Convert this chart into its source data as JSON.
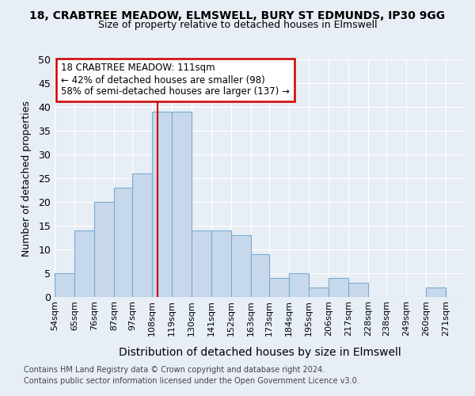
{
  "title_line1": "18, CRABTREE MEADOW, ELMSWELL, BURY ST EDMUNDS, IP30 9GG",
  "title_line2": "Size of property relative to detached houses in Elmswell",
  "xlabel": "Distribution of detached houses by size in Elmswell",
  "ylabel": "Number of detached properties",
  "footnote1": "Contains HM Land Registry data © Crown copyright and database right 2024.",
  "footnote2": "Contains public sector information licensed under the Open Government Licence v3.0.",
  "bin_labels": [
    "54sqm",
    "65sqm",
    "76sqm",
    "87sqm",
    "97sqm",
    "108sqm",
    "119sqm",
    "130sqm",
    "141sqm",
    "152sqm",
    "163sqm",
    "173sqm",
    "184sqm",
    "195sqm",
    "206sqm",
    "217sqm",
    "228sqm",
    "238sqm",
    "249sqm",
    "260sqm",
    "271sqm"
  ],
  "bar_values": [
    5,
    14,
    20,
    23,
    26,
    39,
    39,
    14,
    14,
    13,
    9,
    4,
    5,
    2,
    4,
    3,
    0,
    0,
    0,
    2,
    0
  ],
  "bar_color": "#c8d8ec",
  "bar_edge_color": "#7aaad0",
  "bar_edge_width": 0.8,
  "property_line_color": "#cc0000",
  "ylim": [
    0,
    50
  ],
  "yticks": [
    0,
    5,
    10,
    15,
    20,
    25,
    30,
    35,
    40,
    45,
    50
  ],
  "annotation_text": "18 CRABTREE MEADOW: 111sqm\n← 42% of detached houses are smaller (98)\n58% of semi-detached houses are larger (137) →",
  "annotation_box_color": "#ffffff",
  "annotation_box_edge_color": "#cc0000",
  "bg_color": "#e8eef5",
  "plot_bg_color": "#e8eef5",
  "grid_color": "#ffffff",
  "bin_edges": [
    54,
    65,
    76,
    87,
    97,
    108,
    119,
    130,
    141,
    152,
    163,
    173,
    184,
    195,
    206,
    217,
    228,
    238,
    249,
    260,
    271,
    282
  ]
}
